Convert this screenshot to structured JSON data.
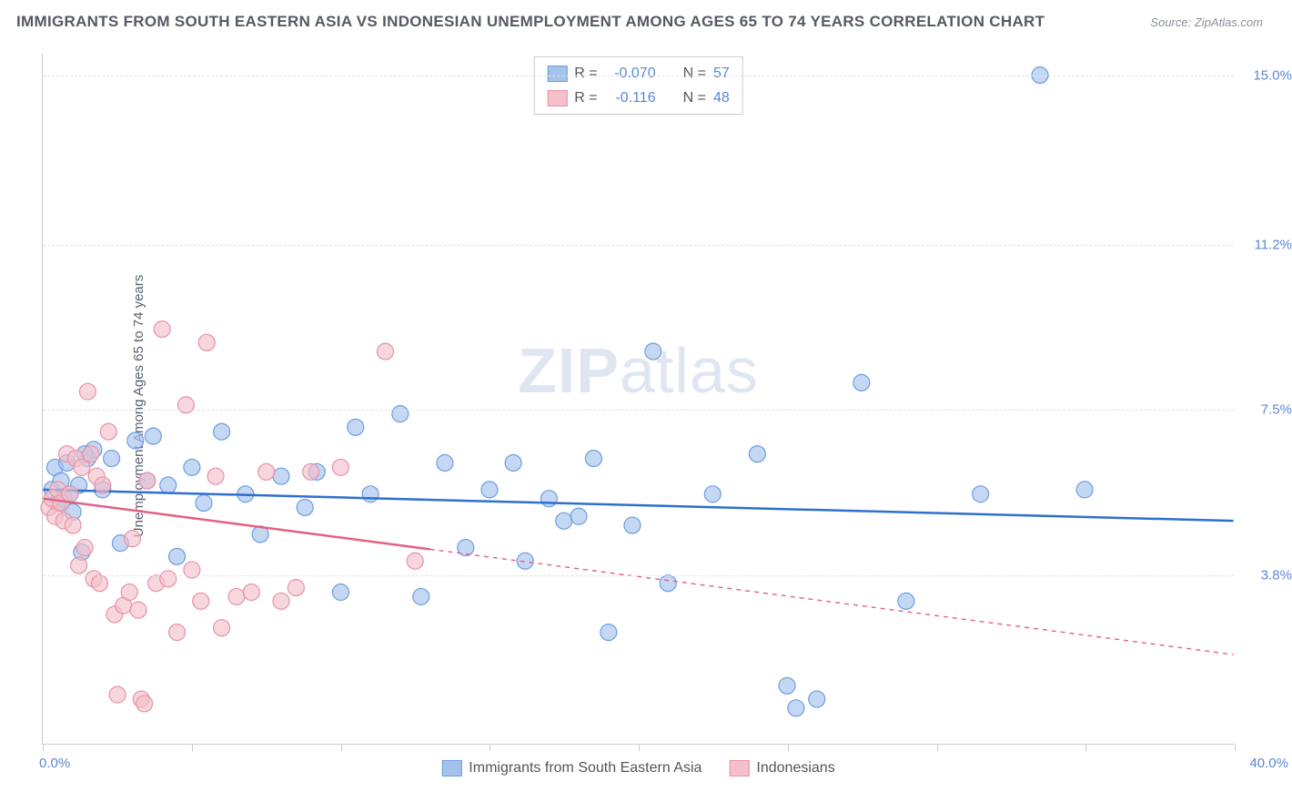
{
  "title": "IMMIGRANTS FROM SOUTH EASTERN ASIA VS INDONESIAN UNEMPLOYMENT AMONG AGES 65 TO 74 YEARS CORRELATION CHART",
  "source_label": "Source:",
  "source_name": "ZipAtlas.com",
  "watermark": {
    "bold": "ZIP",
    "rest": "atlas"
  },
  "chart": {
    "type": "scatter",
    "y_label": "Unemployment Among Ages 65 to 74 years",
    "x_range": [
      0,
      40
    ],
    "y_range": [
      0,
      15.5
    ],
    "x_min_label": "0.0%",
    "x_max_label": "40.0%",
    "y_ticks": [
      {
        "value": 3.8,
        "label": "3.8%"
      },
      {
        "value": 7.5,
        "label": "7.5%"
      },
      {
        "value": 11.2,
        "label": "11.2%"
      },
      {
        "value": 15.0,
        "label": "15.0%"
      }
    ],
    "x_tick_positions": [
      0,
      5,
      10,
      15,
      20,
      25,
      30,
      35,
      40
    ],
    "background_color": "#ffffff",
    "grid_color": "#e1e4ea",
    "axis_color": "#c7ccd4",
    "series": [
      {
        "key": "sea",
        "name": "Immigrants from South Eastern Asia",
        "marker_color": "#a4c3ec",
        "marker_stroke": "#6d9de0",
        "line_color": "#2f6fd0",
        "marker_radius": 9,
        "line_width": 2.5,
        "stats": {
          "R_label": "R =",
          "R": "-0.070",
          "N_label": "N =",
          "N": "57"
        },
        "trend": {
          "x1": 0,
          "y1": 5.7,
          "x2": 40,
          "y2": 5.0,
          "solid_until_x": 40
        },
        "points": [
          [
            0.3,
            5.7
          ],
          [
            0.4,
            6.2
          ],
          [
            0.5,
            5.4
          ],
          [
            0.6,
            5.9
          ],
          [
            0.7,
            5.5
          ],
          [
            0.8,
            6.3
          ],
          [
            0.9,
            5.6
          ],
          [
            1.0,
            5.2
          ],
          [
            1.2,
            5.8
          ],
          [
            1.3,
            4.3
          ],
          [
            1.5,
            6.4
          ],
          [
            1.7,
            6.6
          ],
          [
            1.4,
            6.5
          ],
          [
            2.0,
            5.7
          ],
          [
            2.3,
            6.4
          ],
          [
            2.6,
            4.5
          ],
          [
            3.1,
            6.8
          ],
          [
            3.5,
            5.9
          ],
          [
            3.7,
            6.9
          ],
          [
            4.2,
            5.8
          ],
          [
            4.5,
            4.2
          ],
          [
            5.0,
            6.2
          ],
          [
            5.4,
            5.4
          ],
          [
            6.0,
            7.0
          ],
          [
            6.8,
            5.6
          ],
          [
            7.3,
            4.7
          ],
          [
            8.0,
            6.0
          ],
          [
            8.8,
            5.3
          ],
          [
            9.2,
            6.1
          ],
          [
            10.0,
            3.4
          ],
          [
            10.5,
            7.1
          ],
          [
            11.0,
            5.6
          ],
          [
            12.0,
            7.4
          ],
          [
            12.7,
            3.3
          ],
          [
            13.5,
            6.3
          ],
          [
            14.2,
            4.4
          ],
          [
            15.0,
            5.7
          ],
          [
            15.8,
            6.3
          ],
          [
            16.2,
            4.1
          ],
          [
            17.0,
            5.5
          ],
          [
            17.5,
            5.0
          ],
          [
            18.0,
            5.1
          ],
          [
            18.5,
            6.4
          ],
          [
            19.0,
            2.5
          ],
          [
            19.8,
            4.9
          ],
          [
            20.5,
            8.8
          ],
          [
            21.0,
            3.6
          ],
          [
            22.5,
            5.6
          ],
          [
            24.0,
            6.5
          ],
          [
            25.0,
            1.3
          ],
          [
            25.3,
            0.8
          ],
          [
            26.0,
            1.0
          ],
          [
            27.5,
            8.1
          ],
          [
            29.0,
            3.2
          ],
          [
            31.5,
            5.6
          ],
          [
            33.5,
            15.0
          ],
          [
            35.0,
            5.7
          ]
        ]
      },
      {
        "key": "indo",
        "name": "Indonesians",
        "marker_color": "#f3c0cb",
        "marker_stroke": "#e793a6",
        "line_color": "#e26184",
        "marker_radius": 9,
        "line_width": 2.5,
        "stats": {
          "R_label": "R =",
          "R": "-0.116",
          "N_label": "N =",
          "N": "48"
        },
        "trend": {
          "x1": 0,
          "y1": 5.5,
          "x2": 40,
          "y2": 2.0,
          "solid_until_x": 13
        },
        "points": [
          [
            0.2,
            5.3
          ],
          [
            0.3,
            5.5
          ],
          [
            0.4,
            5.1
          ],
          [
            0.5,
            5.7
          ],
          [
            0.6,
            5.4
          ],
          [
            0.7,
            5.0
          ],
          [
            0.8,
            6.5
          ],
          [
            0.9,
            5.6
          ],
          [
            1.0,
            4.9
          ],
          [
            1.1,
            6.4
          ],
          [
            1.2,
            4.0
          ],
          [
            1.3,
            6.2
          ],
          [
            1.4,
            4.4
          ],
          [
            1.5,
            7.9
          ],
          [
            1.6,
            6.5
          ],
          [
            1.7,
            3.7
          ],
          [
            1.8,
            6.0
          ],
          [
            1.9,
            3.6
          ],
          [
            2.0,
            5.8
          ],
          [
            2.2,
            7.0
          ],
          [
            2.4,
            2.9
          ],
          [
            2.5,
            1.1
          ],
          [
            2.7,
            3.1
          ],
          [
            2.9,
            3.4
          ],
          [
            3.0,
            4.6
          ],
          [
            3.2,
            3.0
          ],
          [
            3.3,
            1.0
          ],
          [
            3.4,
            0.9
          ],
          [
            3.5,
            5.9
          ],
          [
            3.8,
            3.6
          ],
          [
            4.0,
            9.3
          ],
          [
            4.2,
            3.7
          ],
          [
            4.5,
            2.5
          ],
          [
            4.8,
            7.6
          ],
          [
            5.0,
            3.9
          ],
          [
            5.3,
            3.2
          ],
          [
            5.5,
            9.0
          ],
          [
            5.8,
            6.0
          ],
          [
            6.0,
            2.6
          ],
          [
            6.5,
            3.3
          ],
          [
            7.0,
            3.4
          ],
          [
            7.5,
            6.1
          ],
          [
            8.0,
            3.2
          ],
          [
            8.5,
            3.5
          ],
          [
            9.0,
            6.1
          ],
          [
            10.0,
            6.2
          ],
          [
            11.5,
            8.8
          ],
          [
            12.5,
            4.1
          ]
        ]
      }
    ],
    "legend_bottom": [
      {
        "label": "Immigrants from South Eastern Asia",
        "fill": "#a4c3ec",
        "stroke": "#6d9de0"
      },
      {
        "label": "Indonesians",
        "fill": "#f3c0cb",
        "stroke": "#e793a6"
      }
    ]
  }
}
